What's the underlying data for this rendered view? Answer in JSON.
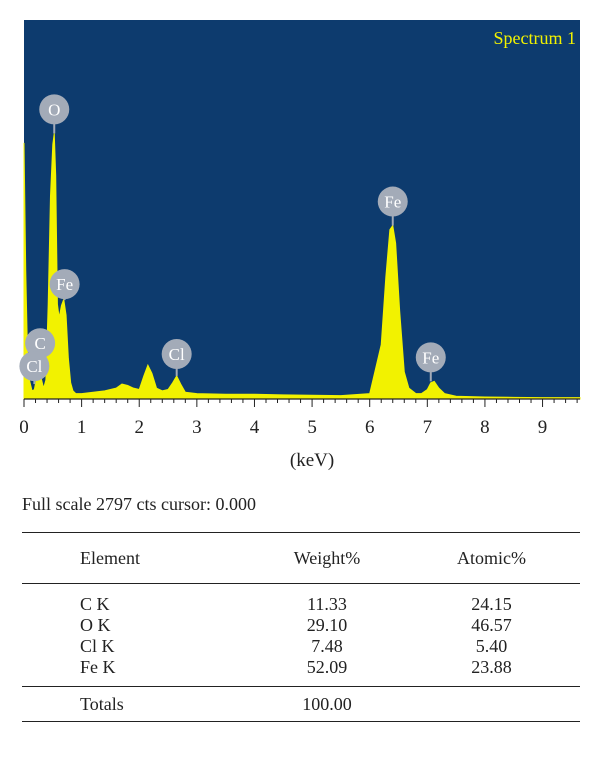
{
  "chart_data": {
    "type": "line",
    "title": "Spectrum 1",
    "xlabel": "(keV)",
    "ylabel": "",
    "xlim": [
      0,
      9.65
    ],
    "ylim": [
      0,
      2797
    ],
    "x_ticks": [
      0,
      1,
      2,
      3,
      4,
      5,
      6,
      7,
      8,
      9
    ],
    "grid": false,
    "colors": {
      "background": "#0d3b6e",
      "trace": "#f2f200",
      "label_bubble": "#a3abb8"
    },
    "series": [
      {
        "x": [
          0.0,
          0.03,
          0.06,
          0.1,
          0.14,
          0.18,
          0.22,
          0.26,
          0.3,
          0.34,
          0.38,
          0.42,
          0.46,
          0.5,
          0.525,
          0.55,
          0.58,
          0.61,
          0.65,
          0.69,
          0.73,
          0.77,
          0.81,
          0.85,
          0.9,
          1.0,
          1.2,
          1.4,
          1.6,
          1.7,
          1.8,
          1.9,
          2.0,
          2.08,
          2.15,
          2.22,
          2.3,
          2.4,
          2.5,
          2.58,
          2.65,
          2.72,
          2.8,
          3.0,
          3.5,
          4.0,
          4.5,
          5.0,
          5.5,
          6.0,
          6.2,
          6.28,
          6.35,
          6.4,
          6.45,
          6.52,
          6.6,
          6.68,
          6.8,
          6.9,
          7.0,
          7.06,
          7.12,
          7.2,
          7.3,
          7.5,
          8.0,
          8.5,
          9.0,
          9.65
        ],
        "y": [
          1890,
          950,
          350,
          130,
          60,
          70,
          160,
          230,
          150,
          80,
          140,
          700,
          1500,
          1880,
          1960,
          1650,
          700,
          600,
          690,
          735,
          620,
          300,
          120,
          60,
          40,
          40,
          50,
          60,
          80,
          110,
          100,
          80,
          70,
          170,
          250,
          190,
          80,
          60,
          70,
          120,
          170,
          110,
          50,
          40,
          35,
          35,
          30,
          28,
          25,
          40,
          400,
          900,
          1250,
          1280,
          1150,
          650,
          200,
          80,
          40,
          40,
          70,
          120,
          130,
          80,
          40,
          20,
          15,
          12,
          10,
          10
        ]
      }
    ],
    "annotations": [
      {
        "label": "O",
        "x": 0.525,
        "y": 1960
      },
      {
        "label": "Fe",
        "x": 0.705,
        "y": 730
      },
      {
        "label": "C",
        "x": 0.28,
        "y": 220
      },
      {
        "label": "Cl",
        "x": 0.18,
        "y": 110
      },
      {
        "label": "Cl",
        "x": 2.65,
        "y": 170
      },
      {
        "label": "Fe",
        "x": 6.4,
        "y": 1280
      },
      {
        "label": "Fe",
        "x": 7.06,
        "y": 130
      }
    ]
  },
  "caption": "Full scale 2797 cts cursor: 0.000",
  "table": {
    "headers": [
      "Element",
      "Weight%",
      "Atomic%"
    ],
    "rows": [
      [
        "C K",
        "11.33",
        "24.15"
      ],
      [
        "O K",
        "29.10",
        "46.57"
      ],
      [
        "Cl K",
        "7.48",
        "5.40"
      ],
      [
        "Fe K",
        "52.09",
        "23.88"
      ]
    ],
    "totals": [
      "Totals",
      "100.00",
      ""
    ]
  }
}
